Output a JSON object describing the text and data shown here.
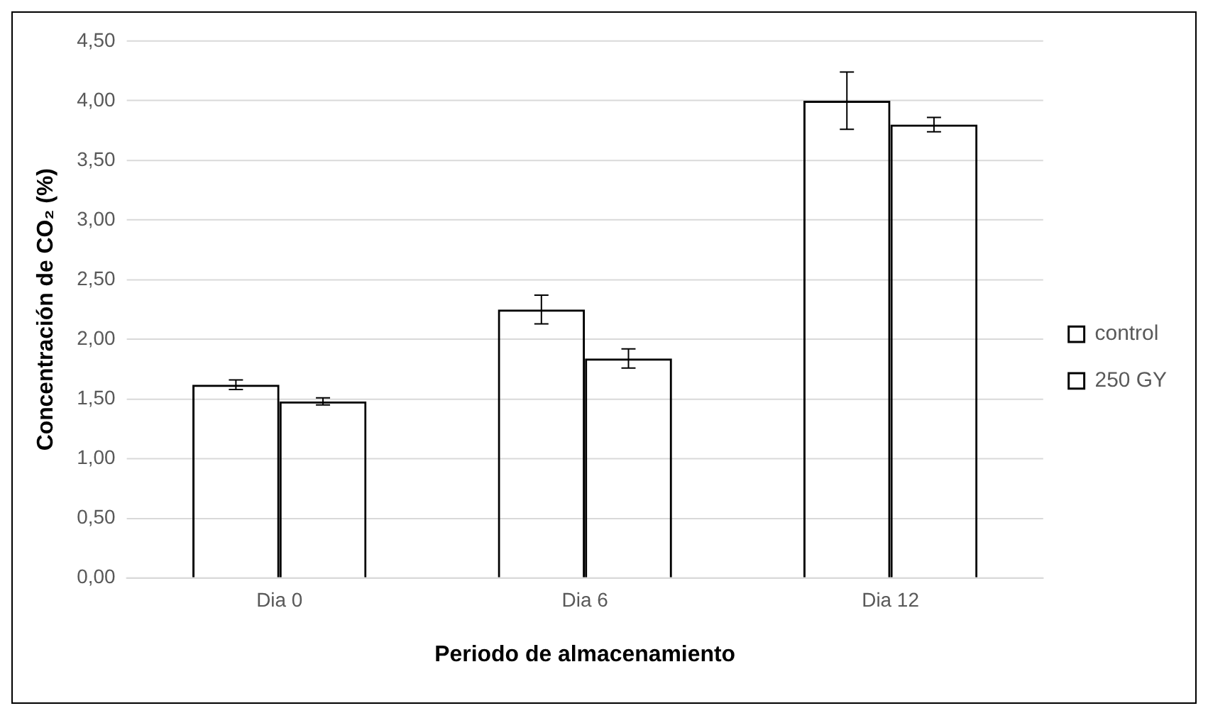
{
  "chart_data": {
    "type": "bar",
    "xlabel": "Periodo de almacenamiento",
    "ylabel": "Concentración de CO₂ (%)",
    "categories": [
      "Dia 0",
      "Dia 6",
      "Dia 12"
    ],
    "series": [
      {
        "name": "control",
        "color": "#000000",
        "values": [
          1.62,
          2.25,
          4.0
        ],
        "errors": [
          0.04,
          0.12,
          0.24
        ]
      },
      {
        "name": "250 GY",
        "color": "#000000",
        "values": [
          1.48,
          1.84,
          3.8
        ],
        "errors": [
          0.03,
          0.08,
          0.06
        ]
      }
    ],
    "ylim": [
      0,
      4.5
    ],
    "yticks": [
      {
        "value": 0,
        "label": "0,00"
      },
      {
        "value": 0.5,
        "label": "0,50"
      },
      {
        "value": 1,
        "label": "1,00"
      },
      {
        "value": 1.5,
        "label": "1,50"
      },
      {
        "value": 2,
        "label": "2,00"
      },
      {
        "value": 2.5,
        "label": "2,50"
      },
      {
        "value": 3,
        "label": "3,00"
      },
      {
        "value": 3.5,
        "label": "3,50"
      },
      {
        "value": 4,
        "label": "4,00"
      },
      {
        "value": 4.5,
        "label": "4,50"
      }
    ],
    "grid": "y",
    "legend": "right"
  }
}
